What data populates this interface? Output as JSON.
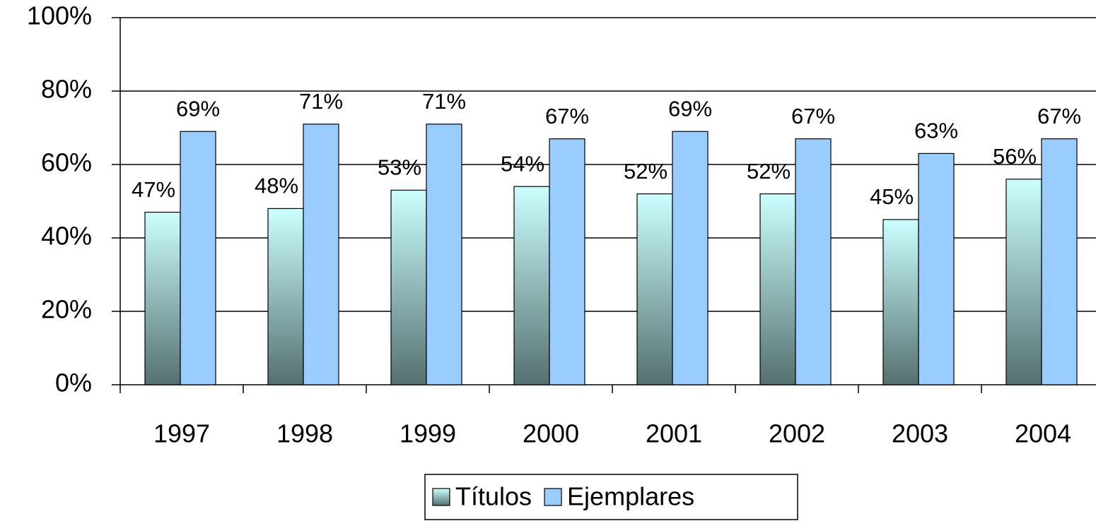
{
  "chart_data": {
    "type": "bar",
    "categories": [
      "1997",
      "1998",
      "1999",
      "2000",
      "2001",
      "2002",
      "2003",
      "2004"
    ],
    "series": [
      {
        "name": "Títulos",
        "color": "#ccffff",
        "values": [
          47,
          48,
          53,
          54,
          52,
          52,
          45,
          56
        ],
        "value_labels": [
          "47%",
          "48%",
          "53%",
          "54%",
          "52%",
          "52%",
          "45%",
          "56%"
        ]
      },
      {
        "name": "Ejemplares",
        "color": "#99ccff",
        "values": [
          69,
          71,
          71,
          67,
          69,
          67,
          63,
          67
        ],
        "value_labels": [
          "69%",
          "71%",
          "71%",
          "67%",
          "69%",
          "67%",
          "63%",
          "67%"
        ]
      }
    ],
    "ylim": [
      0,
      100
    ],
    "yticks": [
      {
        "value": 0,
        "label": "0%"
      },
      {
        "value": 20,
        "label": "20%"
      },
      {
        "value": 40,
        "label": "40%"
      },
      {
        "value": 60,
        "label": "60%"
      },
      {
        "value": 80,
        "label": "80%"
      },
      {
        "value": 100,
        "label": "100%"
      }
    ],
    "grid": true,
    "legend": "bottom"
  }
}
